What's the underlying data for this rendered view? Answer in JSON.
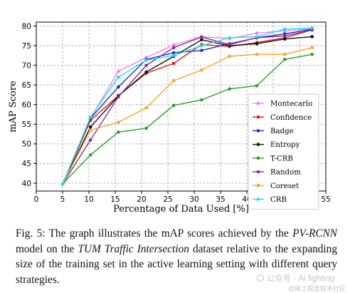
{
  "chart_data": {
    "type": "line",
    "title": "",
    "xlabel": "Percentage of Data Used [%]",
    "ylabel": "mAP Score",
    "xlim": [
      0,
      55
    ],
    "ylim": [
      38,
      81
    ],
    "xticks": [
      "0",
      "5",
      "10",
      "15",
      "20",
      "25",
      "30",
      "35",
      "40",
      "45",
      "50",
      "55"
    ],
    "yticks": [
      "40",
      "45",
      "50",
      "55",
      "60",
      "65",
      "70",
      "75",
      "80"
    ],
    "grid": true,
    "legend_position": "right",
    "x": [
      5,
      10.3,
      15.6,
      20.9,
      26.1,
      31.4,
      36.7,
      41.9,
      47.2,
      52.4
    ],
    "series": [
      {
        "name": "Montecarlo",
        "color": "#ee82ee",
        "values": [
          39.8,
          56.5,
          68.5,
          72.0,
          75.2,
          77.3,
          76.8,
          78.2,
          78.8,
          79.3
        ]
      },
      {
        "name": "Confidence",
        "color": "#e41a1c",
        "values": [
          39.8,
          56.0,
          62.3,
          68.0,
          70.5,
          75.3,
          74.8,
          75.8,
          77.0,
          79.0
        ]
      },
      {
        "name": "Badge",
        "color": "#1f2fcf",
        "values": [
          39.8,
          56.5,
          64.5,
          71.5,
          73.2,
          73.8,
          75.5,
          77.0,
          78.0,
          79.2
        ]
      },
      {
        "name": "Entropy",
        "color": "#111111",
        "values": [
          39.8,
          54.3,
          62.2,
          68.3,
          72.3,
          76.5,
          75.0,
          75.5,
          76.7,
          77.3
        ]
      },
      {
        "name": "T-CRB",
        "color": "#2ca02c",
        "values": [
          39.8,
          47.2,
          53.0,
          54.0,
          59.8,
          61.2,
          64.0,
          64.8,
          71.5,
          72.8
        ]
      },
      {
        "name": "Random",
        "color": "#8b2a9a",
        "values": [
          39.8,
          51.0,
          62.0,
          70.0,
          74.5,
          77.2,
          75.3,
          77.0,
          77.5,
          79.0
        ]
      },
      {
        "name": "Coreset",
        "color": "#ffa424",
        "values": [
          39.8,
          53.5,
          55.5,
          59.2,
          66.1,
          68.8,
          72.3,
          72.8,
          72.8,
          74.5
        ]
      },
      {
        "name": "CRB",
        "color": "#1fe0e0",
        "values": [
          39.8,
          56.8,
          67.0,
          71.3,
          72.5,
          75.0,
          77.0,
          77.3,
          79.2,
          79.5
        ]
      }
    ]
  },
  "caption": {
    "prefix": "Fig. 5: The graph illustrates the mAP scores achieved by the ",
    "model": "PV-RCNN",
    "mid1": " model on the ",
    "dataset": "TUM Traffic Intersection",
    "suffix": " dataset relative to the expanding size of the training set in the active learning setting with different query strategies."
  },
  "watermark": {
    "line1": "公众号 · Ai fighting",
    "line2": "@稀土掘金技术社区"
  }
}
